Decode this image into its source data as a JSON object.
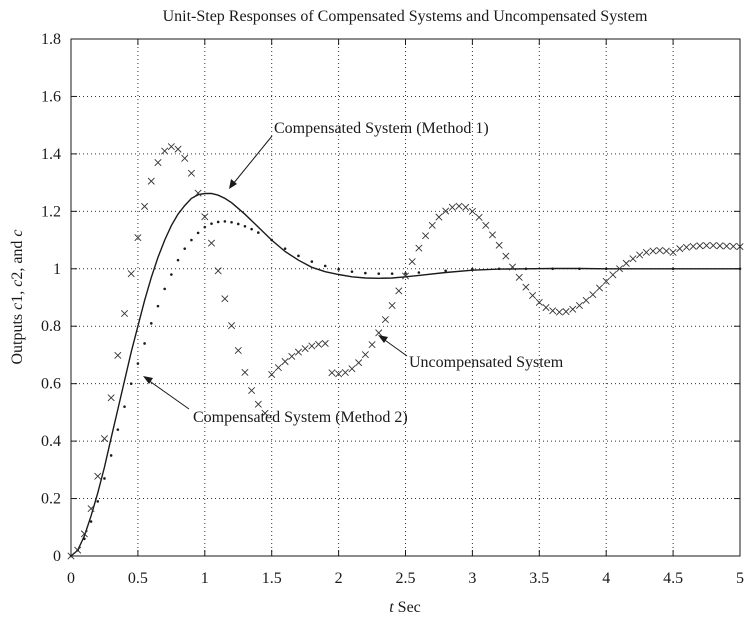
{
  "chart_data": {
    "type": "line",
    "title": "Unit-Step Responses of Compensated Systems and Uncompensated System",
    "xlabel": {
      "italic": "t",
      "rest": " Sec"
    },
    "ylabel": {
      "parts": [
        "Outputs ",
        "c",
        "1, ",
        "c",
        "2, and ",
        "c"
      ]
    },
    "xlim": [
      0,
      5
    ],
    "ylim": [
      0,
      1.8
    ],
    "xticks": [
      "0",
      "0.5",
      "1",
      "1.5",
      "2",
      "2.5",
      "3",
      "3.5",
      "4",
      "4.5",
      "5"
    ],
    "yticks": [
      "0",
      "0.2",
      "0.4",
      "0.6",
      "0.8",
      "1",
      "1.2",
      "1.4",
      "1.6",
      "1.8"
    ],
    "grid": true,
    "series": [
      {
        "style": "solid",
        "x": [
          0,
          0.05,
          0.1,
          0.15,
          0.2,
          0.25,
          0.3,
          0.35,
          0.4,
          0.45,
          0.5,
          0.55,
          0.6,
          0.65,
          0.7,
          0.75,
          0.8,
          0.85,
          0.9,
          0.95,
          1.0,
          1.05,
          1.1,
          1.15,
          1.2,
          1.3,
          1.4,
          1.5,
          1.6,
          1.7,
          1.8,
          1.9,
          2.0,
          2.1,
          2.2,
          2.3,
          2.4,
          2.5,
          2.6,
          2.8,
          3.0,
          3.2,
          3.4,
          3.6,
          3.8,
          4.0,
          4.5,
          5.0
        ],
        "y": [
          0,
          0.02,
          0.07,
          0.14,
          0.22,
          0.31,
          0.41,
          0.51,
          0.61,
          0.71,
          0.8,
          0.89,
          0.97,
          1.04,
          1.1,
          1.15,
          1.19,
          1.22,
          1.245,
          1.258,
          1.262,
          1.262,
          1.256,
          1.245,
          1.23,
          1.19,
          1.145,
          1.1,
          1.06,
          1.03,
          1.005,
          0.99,
          0.98,
          0.972,
          0.968,
          0.967,
          0.968,
          0.972,
          0.977,
          0.987,
          0.995,
          0.999,
          1.0,
          1.001,
          1.001,
          1.0,
          1.0,
          1.0
        ]
      },
      {
        "style": "dotted",
        "x": [
          0,
          0.05,
          0.1,
          0.15,
          0.2,
          0.25,
          0.3,
          0.35,
          0.4,
          0.45,
          0.5,
          0.55,
          0.6,
          0.65,
          0.7,
          0.75,
          0.8,
          0.85,
          0.9,
          0.95,
          1.0,
          1.05,
          1.1,
          1.15,
          1.2,
          1.25,
          1.3,
          1.35,
          1.4,
          1.5,
          1.6,
          1.7,
          1.8,
          1.9,
          2.0,
          2.1,
          2.2,
          2.3,
          2.4,
          2.5,
          2.6,
          2.8,
          3.0,
          3.2,
          3.4,
          3.6,
          3.8,
          4.0,
          4.5,
          5.0
        ],
        "y": [
          0,
          0.02,
          0.06,
          0.12,
          0.19,
          0.27,
          0.35,
          0.44,
          0.52,
          0.6,
          0.67,
          0.74,
          0.81,
          0.87,
          0.93,
          0.98,
          1.03,
          1.07,
          1.1,
          1.125,
          1.145,
          1.157,
          1.163,
          1.165,
          1.162,
          1.156,
          1.148,
          1.138,
          1.126,
          1.1,
          1.07,
          1.045,
          1.025,
          1.01,
          0.998,
          0.99,
          0.985,
          0.983,
          0.983,
          0.984,
          0.987,
          0.993,
          0.998,
          1.0,
          1.0,
          1.0,
          1.0,
          1.0,
          1.0,
          1.0
        ]
      },
      {
        "style": "x-marker",
        "x": [
          0,
          0.05,
          0.1,
          0.15,
          0.2,
          0.25,
          0.3,
          0.35,
          0.4,
          0.45,
          0.5,
          0.55,
          0.6,
          0.65,
          0.7,
          0.75,
          0.8,
          0.85,
          0.9,
          0.95,
          1.0,
          1.05,
          1.1,
          1.15,
          1.2,
          1.25,
          1.3,
          1.35,
          1.4,
          1.45,
          1.5,
          1.55,
          1.6,
          1.65,
          1.7,
          1.75,
          1.8,
          1.85,
          1.9,
          1.95,
          2.0,
          2.05,
          2.1,
          2.15,
          2.2,
          2.25,
          2.3,
          2.35,
          2.4,
          2.45,
          2.5,
          2.55,
          2.6,
          2.65,
          2.7,
          2.75,
          2.8,
          2.85,
          2.9,
          2.95,
          3.0,
          3.05,
          3.1,
          3.15,
          3.2,
          3.25,
          3.3,
          3.35,
          3.4,
          3.45,
          3.5,
          3.55,
          3.6,
          3.65,
          3.7,
          3.75,
          3.8,
          3.85,
          3.9,
          3.95,
          4.0,
          4.05,
          4.1,
          4.15,
          4.2,
          4.25,
          4.3,
          4.35,
          4.4,
          4.45,
          4.5,
          4.55,
          4.6,
          4.65,
          4.7,
          4.75,
          4.8,
          4.85,
          4.9,
          4.95,
          5.0
        ],
        "y": [
          0,
          0.0203,
          0.0772,
          0.165,
          0.2776,
          0.4085,
          0.551,
          0.6985,
          0.8444,
          0.9829,
          1.1086,
          1.2171,
          1.305,
          1.3698,
          1.41,
          1.4254,
          1.4164,
          1.3846,
          1.3326,
          1.2635,
          1.181,
          1.0894,
          0.9929,
          0.8957,
          0.802,
          0.7155,
          0.6393,
          0.5763,
          0.5283,
          0.497,
          0.632,
          0.656,
          0.677,
          0.695,
          0.71,
          0.722,
          0.731,
          0.737,
          0.74,
          0.638,
          0.634,
          0.639,
          0.652,
          0.673,
          0.701,
          0.736,
          0.777,
          0.823,
          0.872,
          0.923,
          0.975,
          1.025,
          1.072,
          1.115,
          1.151,
          1.18,
          1.201,
          1.214,
          1.218,
          1.214,
          1.2,
          1.179,
          1.151,
          1.118,
          1.082,
          1.044,
          1.006,
          0.97,
          0.936,
          0.907,
          0.883,
          0.865,
          0.854,
          0.849,
          0.851,
          0.859,
          0.872,
          0.89,
          0.91,
          0.933,
          0.956,
          0.979,
          1.0,
          1.019,
          1.035,
          1.048,
          1.057,
          1.062,
          1.064,
          1.062,
          1.057,
          1.07,
          1.075,
          1.078,
          1.08,
          1.081,
          1.081,
          1.08,
          1.079,
          1.078,
          1.077
        ]
      }
    ],
    "annotations": [
      {
        "text": "Compensated System (Method 1)"
      },
      {
        "text": "Uncompensated System"
      },
      {
        "text": "Compensated System (Method 2)"
      }
    ]
  }
}
